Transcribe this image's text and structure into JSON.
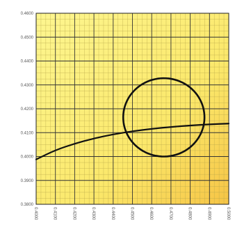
{
  "chart_data": {
    "type": "line",
    "title": "",
    "xlabel": "",
    "ylabel": "",
    "xlim": [
      0.4,
      0.5
    ],
    "ylim": [
      0.38,
      0.46
    ],
    "x_ticks": [
      0.4,
      0.41,
      0.42,
      0.43,
      0.44,
      0.45,
      0.46,
      0.47,
      0.48,
      0.49,
      0.5
    ],
    "x_tick_labels": [
      "0.4000",
      "0.4100",
      "0.4200",
      "0.4300",
      "0.4400",
      "0.4500",
      "0.4600",
      "0.4700",
      "0.4800",
      "0.4900",
      "0.5000"
    ],
    "y_ticks": [
      0.38,
      0.39,
      0.4,
      0.41,
      0.42,
      0.43,
      0.44,
      0.45,
      0.46
    ],
    "y_tick_labels": [
      "0.3800",
      "0.3900",
      "0.4000",
      "0.4100",
      "0.4200",
      "0.4300",
      "0.4400",
      "0.4500",
      "0.4600"
    ],
    "grid": true,
    "minor_grid": true,
    "legend": "none",
    "colors": {
      "plot_background_top": "#fdf690",
      "plot_background_bottom_right": "#f6c445",
      "major_grid": "#333333",
      "minor_grid": "#b8a64a",
      "series": "#111111"
    },
    "series": [
      {
        "kind": "curve",
        "points": [
          [
            0.4,
            0.3988
          ],
          [
            0.41,
            0.4027
          ],
          [
            0.42,
            0.4054
          ],
          [
            0.43,
            0.4076
          ],
          [
            0.44,
            0.4093
          ],
          [
            0.45,
            0.4106
          ],
          [
            0.46,
            0.4116
          ],
          [
            0.47,
            0.4124
          ],
          [
            0.48,
            0.413
          ],
          [
            0.49,
            0.4135
          ],
          [
            0.5,
            0.4138
          ]
        ]
      },
      {
        "kind": "ellipse",
        "center": [
          0.4663,
          0.4164
        ],
        "x_semi_axis": 0.0211,
        "y_semi_axis": 0.0164,
        "rotation_deg": 59
      }
    ]
  }
}
